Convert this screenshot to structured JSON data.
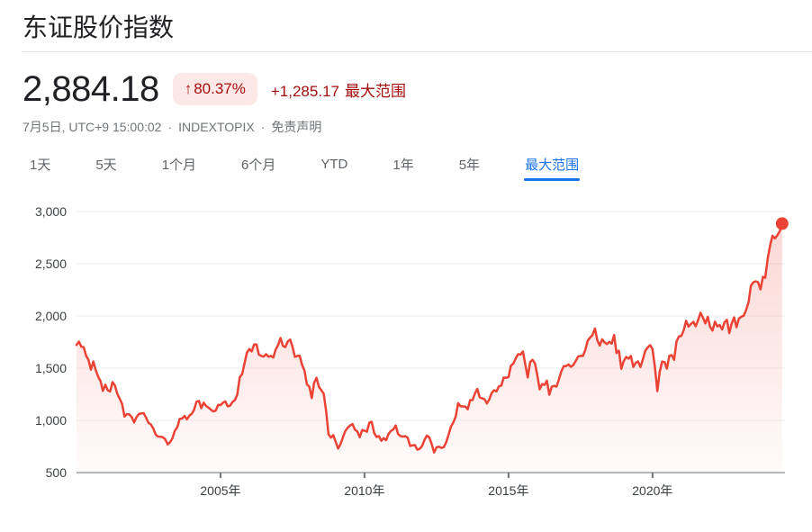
{
  "header": {
    "title": "东证股价指数"
  },
  "quote": {
    "price": "2,884.18",
    "change_arrow": "↑",
    "change_percent": "80.37%",
    "change_absolute": "+1,285.17",
    "change_period": "最大范围",
    "timestamp": "7月5日, UTC+9 15:00:02",
    "separator": "·",
    "source": "INDEXTOPIX",
    "disclaimer": "免责声明"
  },
  "tabs": [
    {
      "label": "1天",
      "selected": false
    },
    {
      "label": "5天",
      "selected": false
    },
    {
      "label": "1个月",
      "selected": false
    },
    {
      "label": "6个月",
      "selected": false
    },
    {
      "label": "YTD",
      "selected": false
    },
    {
      "label": "1年",
      "selected": false
    },
    {
      "label": "5年",
      "selected": false
    },
    {
      "label": "最大范围",
      "selected": true
    }
  ],
  "colors": {
    "line_red": "#ea4335",
    "change_red": "#a50e0e",
    "badge_background": "#fce8e6",
    "selected_tab_blue": "#1a73e8",
    "grid_light": "#eef0f2",
    "axis_gray": "#9aa0a6"
  },
  "chart_data": {
    "type": "line",
    "title": "东证股价指数 最大范围",
    "xlabel": "",
    "ylabel": "",
    "legend": "none",
    "grid": "horizontal",
    "line_color": "#ea4335",
    "end_dot": true,
    "last_value": 2884.18,
    "xlim": [
      2000.0,
      2024.6
    ],
    "ylim": [
      500,
      3000
    ],
    "x_start_year": 2000.0,
    "x_step_years": 0.0833333,
    "x_ticks": [
      {
        "year": 2005,
        "label": "2005年"
      },
      {
        "year": 2010,
        "label": "2010年"
      },
      {
        "year": 2015,
        "label": "2015年"
      },
      {
        "year": 2020,
        "label": "2020年"
      }
    ],
    "y_ticks": [
      {
        "value": 3000,
        "label": "3,000"
      },
      {
        "value": 2500,
        "label": "2,500"
      },
      {
        "value": 2000,
        "label": "2,000"
      },
      {
        "value": 1500,
        "label": "1,500"
      },
      {
        "value": 1000,
        "label": "1,000"
      },
      {
        "value": 500,
        "label": "500"
      }
    ],
    "values": [
      1722,
      1754,
      1705,
      1701,
      1619,
      1579,
      1486,
      1565,
      1482,
      1420,
      1375,
      1283,
      1341,
      1289,
      1277,
      1366,
      1334,
      1254,
      1208,
      1156,
      1036,
      1060,
      1057,
      1032,
      980,
      1030,
      1060,
      1067,
      1069,
      1025,
      976,
      961,
      922,
      862,
      845,
      844,
      838,
      818,
      770,
      791,
      830,
      903,
      935,
      1015,
      1018,
      1043,
      1010,
      1044,
      1063,
      1102,
      1179,
      1186,
      1117,
      1170,
      1138,
      1122,
      1103,
      1085,
      1093,
      1149,
      1146,
      1169,
      1182,
      1134,
      1141,
      1177,
      1195,
      1247,
      1412,
      1444,
      1545,
      1649,
      1684,
      1660,
      1728,
      1728,
      1629,
      1617,
      1611,
      1634,
      1610,
      1617,
      1603,
      1681,
      1721,
      1790,
      1713,
      1701,
      1755,
      1774,
      1706,
      1608,
      1617,
      1620,
      1531,
      1476,
      1346,
      1324,
      1213,
      1358,
      1408,
      1321,
      1290,
      1255,
      1088,
      867,
      835,
      859,
      795,
      730,
      774,
      838,
      898,
      930,
      951,
      965,
      910,
      895,
      839,
      908,
      901,
      891,
      979,
      987,
      880,
      841,
      850,
      804,
      830,
      810,
      870,
      899,
      913,
      951,
      869,
      850,
      845,
      849,
      834,
      755,
      761,
      764,
      719,
      728,
      755,
      815,
      854,
      837,
      772,
      692,
      742,
      747,
      737,
      742,
      790,
      860,
      940,
      980,
      1035,
      1165,
      1135,
      1134,
      1133,
      1106,
      1194,
      1194,
      1258,
      1302,
      1220,
      1211,
      1203,
      1162,
      1201,
      1263,
      1289,
      1278,
      1326,
      1333,
      1410,
      1408,
      1415,
      1524,
      1543,
      1593,
      1634,
      1630,
      1660,
      1537,
      1411,
      1558,
      1580,
      1547,
      1432,
      1297,
      1347,
      1340,
      1380,
      1246,
      1323,
      1330,
      1323,
      1393,
      1469,
      1518,
      1521,
      1535,
      1513,
      1531,
      1568,
      1611,
      1618,
      1617,
      1674,
      1765,
      1792,
      1818,
      1880,
      1768,
      1716,
      1777,
      1747,
      1730,
      1753,
      1735,
      1817,
      1646,
      1667,
      1494,
      1567,
      1607,
      1591,
      1617,
      1512,
      1551,
      1565,
      1511,
      1587,
      1667,
      1699,
      1721,
      1684,
      1510,
      1280,
      1464,
      1563,
      1559,
      1496,
      1618,
      1625,
      1580,
      1755,
      1805,
      1808,
      1864,
      1954,
      1898,
      1923,
      1944,
      1901,
      1961,
      2031,
      1986,
      1929,
      1992,
      1896,
      1860,
      1946,
      1900,
      1913,
      1871,
      1940,
      1963,
      1836,
      1929,
      1986,
      1892,
      1975,
      1993,
      2003,
      2057,
      2130,
      2289,
      2322,
      2332,
      2323,
      2254,
      2375,
      2366,
      2551,
      2676,
      2768,
      2743,
      2772,
      2810,
      2884.18
    ]
  }
}
